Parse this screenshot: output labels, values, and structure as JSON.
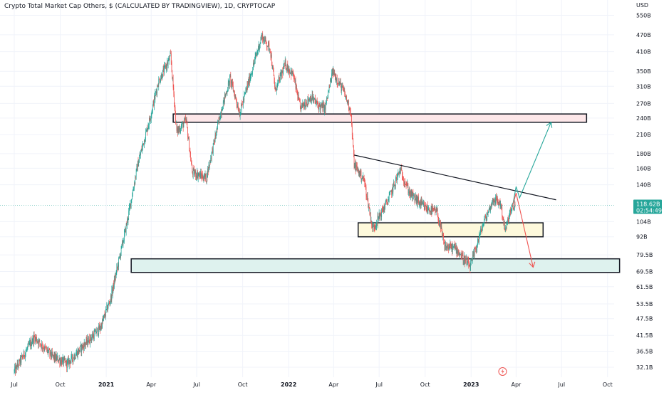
{
  "header": {
    "title": "Crypto Total Market Cap Others, $ (CALCULATED BY TRADINGVIEW), 1D, CRYPTOCAP"
  },
  "currency": "USD",
  "price_badge": {
    "value": "118.62B",
    "countdown": "02:54:49",
    "color": "#26a69a"
  },
  "colors": {
    "up": "#26a69a",
    "down": "#ef5350",
    "resistance_zone": "#fde7e9",
    "support_mid": "#fdf9dc",
    "support_low": "#def2ee",
    "line": "#131722"
  },
  "chart_data": {
    "type": "candlestick",
    "title": "Crypto Total Market Cap Others, $ (CALCULATED BY TRADINGVIEW), 1D, CRYPTOCAP",
    "y_scale": "log",
    "y_unit": "USD (billions)",
    "y_ticks": [
      "550B",
      "470B",
      "410B",
      "350B",
      "310B",
      "270B",
      "240B",
      "210B",
      "180B",
      "160B",
      "140B",
      "104B",
      "92B",
      "79.5B",
      "69.5B",
      "61.5B",
      "53.5B",
      "47.5B",
      "41.5B",
      "36.5B",
      "32.1B"
    ],
    "x_ticks": [
      {
        "label": "Jul",
        "bold": false
      },
      {
        "label": "Oct",
        "bold": false
      },
      {
        "label": "2021",
        "bold": true
      },
      {
        "label": "Apr",
        "bold": false
      },
      {
        "label": "Jul",
        "bold": false
      },
      {
        "label": "Oct",
        "bold": false
      },
      {
        "label": "2022",
        "bold": true
      },
      {
        "label": "Apr",
        "bold": false
      },
      {
        "label": "Jul",
        "bold": false
      },
      {
        "label": "Oct",
        "bold": false
      },
      {
        "label": "2023",
        "bold": true
      },
      {
        "label": "Apr",
        "bold": false
      },
      {
        "label": "Jul",
        "bold": false
      },
      {
        "label": "Oct",
        "bold": false
      }
    ],
    "last_price": 118.62,
    "price_path": [
      [
        "2020-07-01",
        31
      ],
      [
        "2020-08-10",
        41
      ],
      [
        "2020-09-15",
        35
      ],
      [
        "2020-10-15",
        33
      ],
      [
        "2020-11-15",
        38
      ],
      [
        "2020-12-20",
        44
      ],
      [
        "2021-01-10",
        56
      ],
      [
        "2021-02-10",
        100
      ],
      [
        "2021-03-05",
        165
      ],
      [
        "2021-04-01",
        250
      ],
      [
        "2021-04-15",
        320
      ],
      [
        "2021-05-10",
        395
      ],
      [
        "2021-05-22",
        215
      ],
      [
        "2021-06-10",
        235
      ],
      [
        "2021-06-22",
        155
      ],
      [
        "2021-07-20",
        148
      ],
      [
        "2021-08-20",
        260
      ],
      [
        "2021-09-06",
        330
      ],
      [
        "2021-09-25",
        250
      ],
      [
        "2021-10-20",
        355
      ],
      [
        "2021-11-08",
        465
      ],
      [
        "2021-11-25",
        420
      ],
      [
        "2021-12-05",
        300
      ],
      [
        "2021-12-25",
        370
      ],
      [
        "2022-01-10",
        340
      ],
      [
        "2022-01-24",
        260
      ],
      [
        "2022-02-15",
        285
      ],
      [
        "2022-03-01",
        265
      ],
      [
        "2022-03-15",
        260
      ],
      [
        "2022-03-30",
        350
      ],
      [
        "2022-04-20",
        300
      ],
      [
        "2022-05-05",
        255
      ],
      [
        "2022-05-12",
        165
      ],
      [
        "2022-06-01",
        145
      ],
      [
        "2022-06-18",
        98
      ],
      [
        "2022-07-20",
        125
      ],
      [
        "2022-08-12",
        158
      ],
      [
        "2022-09-01",
        130
      ],
      [
        "2022-10-01",
        116
      ],
      [
        "2022-10-25",
        112
      ],
      [
        "2022-11-09",
        85
      ],
      [
        "2022-12-01",
        84
      ],
      [
        "2022-12-30",
        72
      ],
      [
        "2023-01-25",
        102
      ],
      [
        "2023-02-15",
        125
      ],
      [
        "2023-03-01",
        120
      ],
      [
        "2023-03-10",
        96
      ],
      [
        "2023-03-20",
        112
      ],
      [
        "2023-03-30",
        119
      ]
    ],
    "annotations": {
      "resistance_zone": {
        "from": "2021-05-15",
        "to": "2023-08-20",
        "low": 232,
        "high": 248
      },
      "mid_support_zone": {
        "from": "2022-05-20",
        "to": "2023-05-25",
        "low": 92,
        "high": 103
      },
      "low_support_zone": {
        "from": "2021-02-20",
        "to": "2023-10-25",
        "low": 69,
        "high": 77
      },
      "trendline": {
        "from": [
          "2022-05-12",
          178
        ],
        "to": [
          "2023-06-20",
          124
        ]
      },
      "bull_projection": [
        [
          "2023-03-25",
          118
        ],
        [
          "2023-04-01",
          138
        ],
        [
          "2023-04-08",
          126
        ],
        [
          "2023-06-10",
          232
        ]
      ],
      "bear_projection": [
        [
          "2023-03-25",
          118
        ],
        [
          "2023-04-01",
          131
        ],
        [
          "2023-05-05",
          72
        ]
      ]
    }
  }
}
